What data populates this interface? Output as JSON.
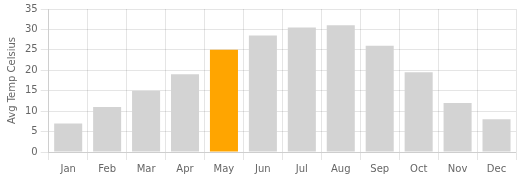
{
  "chart_data": {
    "type": "bar",
    "categories": [
      "Jan",
      "Feb",
      "Mar",
      "Apr",
      "May",
      "Jun",
      "Jul",
      "Aug",
      "Sep",
      "Oct",
      "Nov",
      "Dec"
    ],
    "values": [
      7,
      11,
      15,
      19,
      25,
      28.5,
      30.5,
      31,
      26,
      19.5,
      12,
      8
    ],
    "colors": [
      "#d3d3d3",
      "#d3d3d3",
      "#d3d3d3",
      "#d3d3d3",
      "#ffa500",
      "#d3d3d3",
      "#d3d3d3",
      "#d3d3d3",
      "#d3d3d3",
      "#d3d3d3",
      "#d3d3d3",
      "#d3d3d3"
    ],
    "ylabel": "Avg Temp Celsius",
    "ylim": [
      0,
      35
    ],
    "yticks": [
      0,
      5,
      10,
      15,
      20,
      25,
      30,
      35
    ],
    "grid": true
  }
}
